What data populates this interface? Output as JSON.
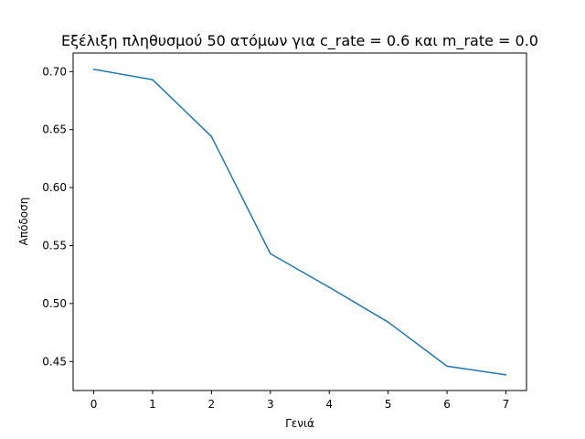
{
  "chart_data": {
    "type": "line",
    "title": "Εξέλιξη πληθυσμού 50 ατόμων για c_rate = 0.6 και m_rate = 0.0",
    "xlabel": "Γενιά",
    "ylabel": "Απόδοση",
    "x": [
      0,
      1,
      2,
      3,
      4,
      5,
      6,
      7
    ],
    "series": [
      {
        "values": [
          0.702,
          0.693,
          0.644,
          0.543,
          0.514,
          0.484,
          0.446,
          0.4385
        ],
        "color": "#1f77b4"
      }
    ],
    "xlim": [
      -0.35,
      7.35
    ],
    "ylim": [
      0.425,
      0.716
    ],
    "xticks": [
      0,
      1,
      2,
      3,
      4,
      5,
      6,
      7
    ],
    "yticks": [
      0.45,
      0.5,
      0.55,
      0.6,
      0.65,
      0.7
    ],
    "ytick_labels": [
      "0.45",
      "0.50",
      "0.55",
      "0.60",
      "0.65",
      "0.70"
    ],
    "grid": false,
    "legend": "none"
  }
}
